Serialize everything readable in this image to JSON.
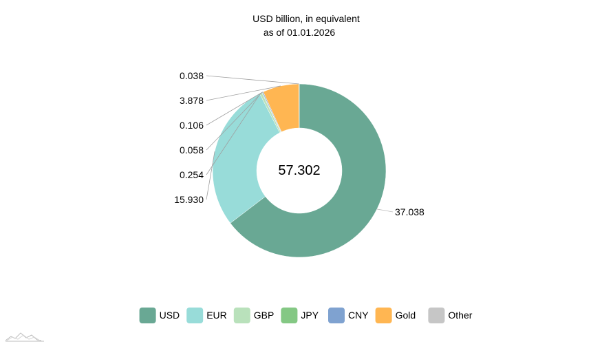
{
  "chart_data": {
    "type": "donut",
    "title": "USD billion, in equivalent",
    "subtitle": "as of 01.01.2026",
    "total_label": "57.302",
    "categories": [
      "USD",
      "EUR",
      "GBP",
      "JPY",
      "CNY",
      "Gold",
      "Other"
    ],
    "values": [
      37.038,
      15.93,
      0.254,
      0.058,
      0.106,
      3.878,
      0.038
    ],
    "value_labels": [
      "37.038",
      "15.930",
      "0.254",
      "0.058",
      "0.106",
      "3.878",
      "0.038"
    ],
    "colors": [
      "#69a894",
      "#98dcd9",
      "#b9e1bb",
      "#84c884",
      "#7fa2d0",
      "#ffb652",
      "#c6c6c6"
    ],
    "legend_position": "bottom",
    "start_angle_deg": 0,
    "direction": "clockwise"
  }
}
